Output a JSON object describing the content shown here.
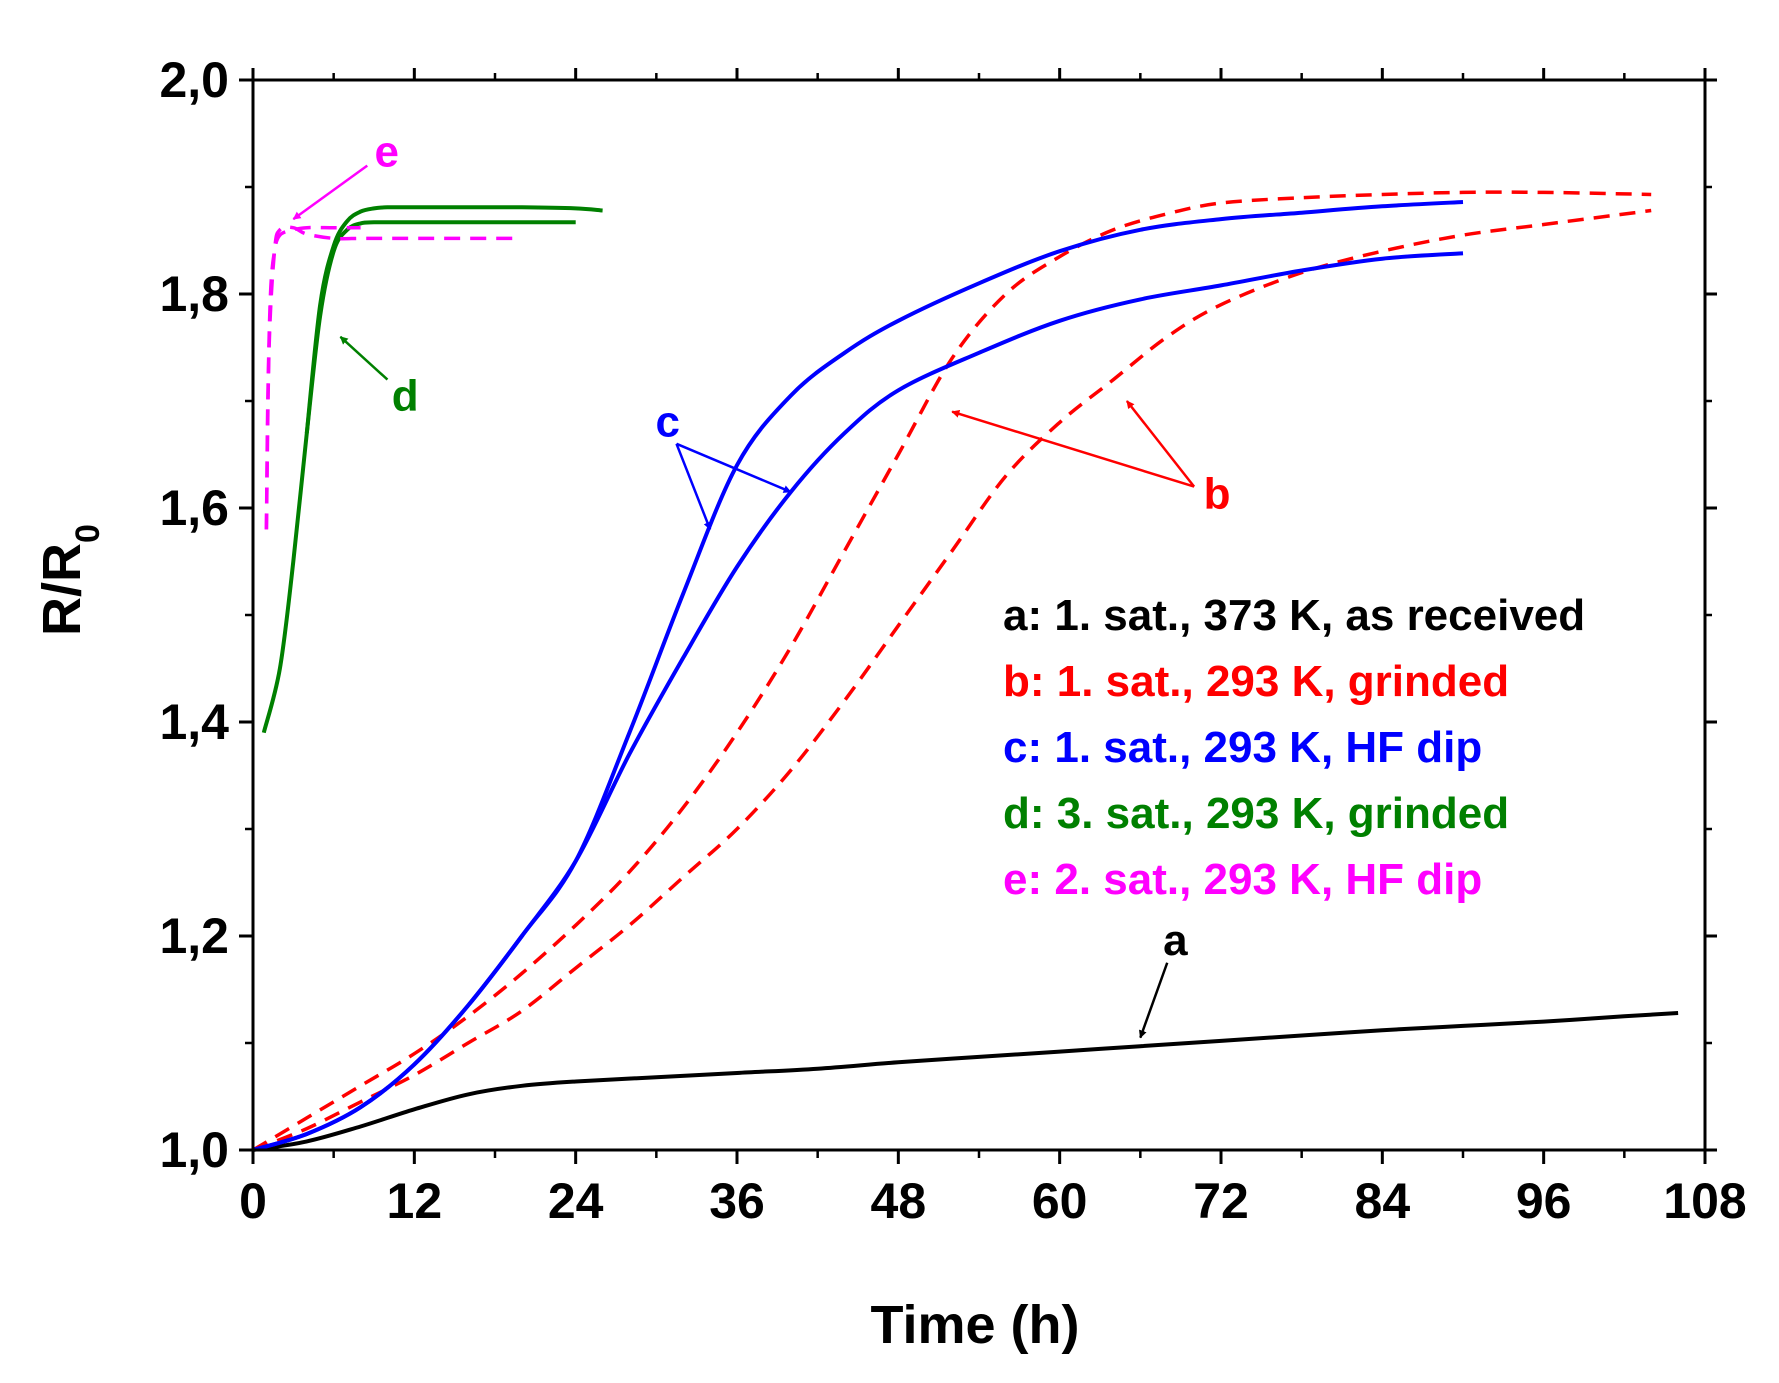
{
  "chart_data": {
    "type": "line",
    "title": "",
    "xlabel": "Time (h)",
    "ylabel_main": "R/R",
    "ylabel_sub": "0",
    "xlim": [
      0,
      108
    ],
    "ylim": [
      1.0,
      2.0
    ],
    "xticks": [
      0,
      12,
      24,
      36,
      48,
      60,
      72,
      84,
      96,
      108
    ],
    "xtick_labels": [
      "0",
      "12",
      "24",
      "36",
      "48",
      "60",
      "72",
      "84",
      "96",
      "108"
    ],
    "yticks": [
      1.0,
      1.2,
      1.4,
      1.6,
      1.8,
      2.0
    ],
    "ytick_labels": [
      "1,0",
      "1,2",
      "1,4",
      "1,6",
      "1,8",
      "2,0"
    ],
    "legend": [
      {
        "text": "a: 1. sat., 373 K, as received",
        "color": "#000000"
      },
      {
        "text": "b: 1. sat., 293 K, grinded",
        "color": "#ff0000"
      },
      {
        "text": "c: 1. sat., 293 K, HF dip",
        "color": "#0000ff"
      },
      {
        "text": "d: 3. sat., 293 K, grinded",
        "color": "#008000"
      },
      {
        "text": "e: 2. sat., 293 K, HF dip",
        "color": "#ff00ff"
      }
    ],
    "series": [
      {
        "name": "a",
        "color": "#000000",
        "dash": false,
        "x": [
          0,
          4,
          8,
          12,
          16,
          20,
          24,
          30,
          36,
          42,
          48,
          54,
          60,
          66,
          72,
          78,
          84,
          90,
          96,
          102,
          106
        ],
        "y": [
          1.0,
          1.008,
          1.022,
          1.038,
          1.052,
          1.06,
          1.064,
          1.068,
          1.072,
          1.076,
          1.082,
          1.087,
          1.092,
          1.097,
          1.102,
          1.107,
          1.112,
          1.116,
          1.12,
          1.125,
          1.128
        ]
      },
      {
        "name": "b1",
        "color": "#ff0000",
        "dash": true,
        "x": [
          0,
          4,
          8,
          12,
          16,
          20,
          24,
          28,
          32,
          36,
          40,
          44,
          48,
          52,
          56,
          60,
          64,
          68,
          72,
          78,
          84,
          90,
          96,
          104
        ],
        "y": [
          1.0,
          1.03,
          1.06,
          1.09,
          1.125,
          1.165,
          1.21,
          1.26,
          1.32,
          1.39,
          1.47,
          1.56,
          1.65,
          1.74,
          1.8,
          1.835,
          1.86,
          1.875,
          1.885,
          1.89,
          1.893,
          1.895,
          1.895,
          1.893
        ]
      },
      {
        "name": "b2",
        "color": "#ff0000",
        "dash": true,
        "x": [
          0,
          4,
          8,
          12,
          16,
          20,
          24,
          28,
          32,
          36,
          40,
          44,
          48,
          52,
          56,
          60,
          64,
          68,
          72,
          78,
          84,
          90,
          96,
          104
        ],
        "y": [
          1.0,
          1.02,
          1.045,
          1.07,
          1.1,
          1.13,
          1.17,
          1.21,
          1.255,
          1.3,
          1.355,
          1.42,
          1.49,
          1.56,
          1.63,
          1.68,
          1.72,
          1.76,
          1.79,
          1.82,
          1.84,
          1.855,
          1.865,
          1.878
        ]
      },
      {
        "name": "c1",
        "color": "#0000ff",
        "dash": false,
        "x": [
          0,
          4,
          8,
          12,
          16,
          20,
          24,
          28,
          32,
          36,
          40,
          44,
          48,
          54,
          60,
          66,
          72,
          78,
          84,
          90
        ],
        "y": [
          1.0,
          1.015,
          1.04,
          1.08,
          1.135,
          1.2,
          1.27,
          1.39,
          1.52,
          1.64,
          1.705,
          1.745,
          1.775,
          1.81,
          1.84,
          1.86,
          1.87,
          1.876,
          1.882,
          1.886
        ]
      },
      {
        "name": "c2",
        "color": "#0000ff",
        "dash": false,
        "x": [
          0,
          4,
          8,
          12,
          16,
          20,
          24,
          28,
          32,
          36,
          40,
          44,
          48,
          54,
          60,
          66,
          72,
          78,
          84,
          90
        ],
        "y": [
          1.0,
          1.015,
          1.04,
          1.08,
          1.135,
          1.2,
          1.27,
          1.37,
          1.46,
          1.545,
          1.615,
          1.67,
          1.71,
          1.745,
          1.775,
          1.795,
          1.808,
          1.822,
          1.833,
          1.838
        ]
      },
      {
        "name": "d1",
        "color": "#008000",
        "dash": false,
        "x": [
          0.8,
          2,
          3,
          4,
          5,
          6,
          7,
          8,
          9,
          10,
          12,
          16,
          20,
          24
        ],
        "y": [
          1.39,
          1.45,
          1.55,
          1.67,
          1.78,
          1.84,
          1.86,
          1.866,
          1.867,
          1.867,
          1.867,
          1.867,
          1.867,
          1.867
        ]
      },
      {
        "name": "d2",
        "color": "#008000",
        "dash": false,
        "x": [
          4,
          5,
          6,
          7,
          8,
          9,
          10,
          12,
          16,
          20,
          24,
          26
        ],
        "y": [
          1.67,
          1.79,
          1.845,
          1.868,
          1.877,
          1.88,
          1.881,
          1.881,
          1.881,
          1.881,
          1.88,
          1.878
        ]
      },
      {
        "name": "e1",
        "color": "#ff00ff",
        "dash": true,
        "x": [
          1.0,
          1.1,
          1.3,
          1.6,
          2,
          3,
          4,
          6,
          8
        ],
        "y": [
          1.58,
          1.7,
          1.8,
          1.84,
          1.855,
          1.86,
          1.862,
          1.862,
          1.862
        ]
      },
      {
        "name": "e2",
        "color": "#ff00ff",
        "dash": true,
        "x": [
          1.0,
          1.2,
          1.6,
          2,
          3,
          4,
          6,
          8,
          10,
          14,
          20
        ],
        "y": [
          1.58,
          1.75,
          1.84,
          1.86,
          1.862,
          1.856,
          1.852,
          1.852,
          1.852,
          1.852,
          1.852
        ]
      }
    ],
    "annotations": [
      {
        "text": "a",
        "color": "#000000",
        "from": [
          68,
          1.175
        ],
        "to": [
          66,
          1.105
        ]
      },
      {
        "text": "b",
        "color": "#ff0000",
        "from": [
          70,
          1.62
        ],
        "to": [
          52,
          1.69
        ]
      },
      {
        "text": "b",
        "color": "#ff0000",
        "from": [
          70,
          1.62
        ],
        "to": [
          65,
          1.7
        ]
      },
      {
        "text": "c",
        "color": "#0000ff",
        "from": [
          31.5,
          1.66
        ],
        "to": [
          34,
          1.58
        ]
      },
      {
        "text": "c",
        "color": "#0000ff",
        "from": [
          31.5,
          1.66
        ],
        "to": [
          40,
          1.615
        ]
      },
      {
        "text": "d",
        "color": "#008000",
        "from": [
          10,
          1.72
        ],
        "to": [
          6.5,
          1.76
        ]
      },
      {
        "text": "e",
        "color": "#ff00ff",
        "from": [
          8.5,
          1.92
        ],
        "to": [
          3,
          1.87
        ]
      }
    ]
  }
}
